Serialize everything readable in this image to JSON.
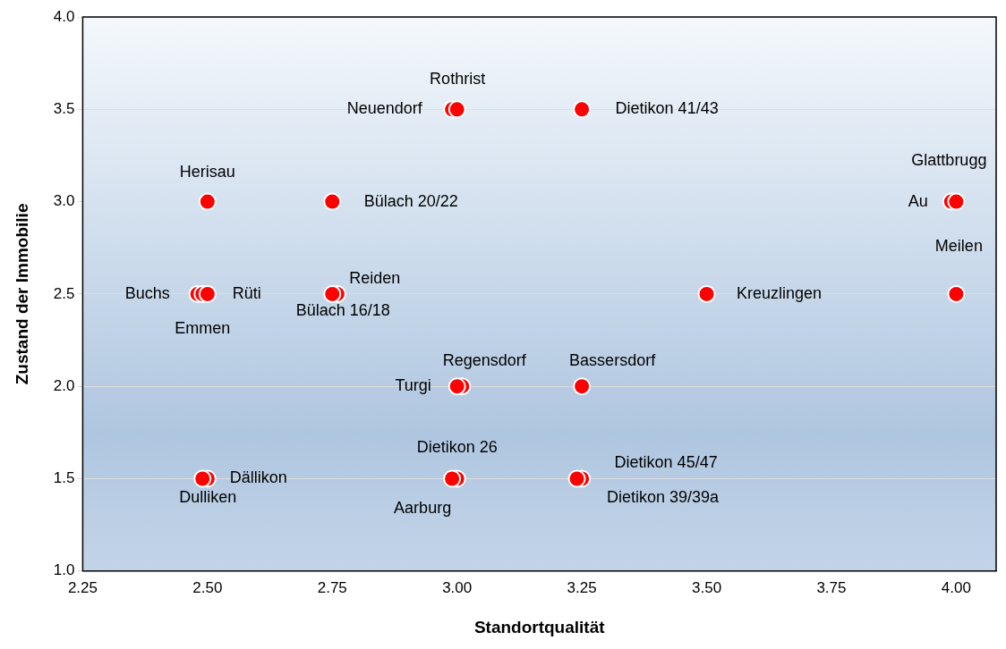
{
  "chart_data": {
    "type": "scatter",
    "xlabel": "Standortqualität",
    "ylabel": "Zustand der Immobilie",
    "x": [
      2.99,
      3.0,
      3.25,
      2.5,
      2.75,
      3.99,
      4.0,
      2.48,
      2.49,
      2.5,
      2.76,
      2.75,
      3.5,
      4.0,
      3.01,
      3.0,
      3.25,
      3.0,
      2.99,
      3.25,
      3.24,
      2.5,
      2.49
    ],
    "values": [
      3.5,
      3.5,
      3.5,
      3.0,
      3.0,
      3.0,
      3.0,
      2.5,
      2.5,
      2.5,
      2.5,
      2.5,
      2.5,
      2.5,
      2.0,
      2.0,
      2.0,
      1.5,
      1.5,
      1.5,
      1.5,
      1.5,
      1.5
    ],
    "value_labels": [
      "Rothrist",
      "Neuendorf",
      "Dietikon 41/43",
      "Herisau",
      "Bülach 20/22",
      "Au",
      "Glattbrugg",
      "Buchs",
      "Emmen",
      "Rüti",
      "Reiden",
      "Bülach 16/18",
      "Kreuzlingen",
      "Meilen",
      "Regensdorf",
      "Turgi",
      "Bassersdorf",
      "Dietikon 26",
      "Aarburg",
      "Dietikon 45/47",
      "Dietikon 39/39a",
      "Dällikon",
      "Dulliken"
    ],
    "color": "#ff0000",
    "marker": "circle",
    "grid": "y",
    "legend": false,
    "xlim": [
      2.25,
      4.08
    ],
    "xticks": [
      2.25,
      {
        "value": 2.5,
        "label": "2.50"
      },
      2.75,
      {
        "value": 3.0,
        "label": "3.00"
      },
      3.25,
      {
        "value": 3.5,
        "label": "3.50"
      },
      3.75,
      {
        "value": 4.0,
        "label": "4.00"
      }
    ],
    "ylim": [
      1.0,
      4.0
    ],
    "yticks": [
      {
        "value": 1.0,
        "label": "1.0"
      },
      2.5,
      {
        "value": 2.0,
        "label": "2.0"
      },
      1.5,
      {
        "value": 3.0,
        "label": "3.0"
      },
      3.5,
      {
        "value": 4.0,
        "label": "4.0"
      }
    ]
  }
}
